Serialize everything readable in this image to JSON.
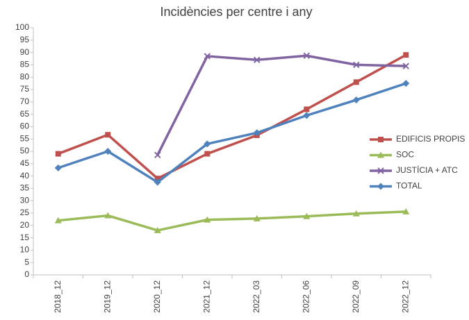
{
  "chart_data": {
    "type": "line",
    "title": "Incidències per centre i any",
    "categories": [
      "2018_12",
      "2019_12",
      "2020_12",
      "2021_12",
      "2022_03",
      "2022_06",
      "2022_09",
      "2022_12"
    ],
    "series": [
      {
        "name": "EDIFICIS PROPIS",
        "color": "#c0504d",
        "marker": "square",
        "values": [
          49,
          56.7,
          39,
          49,
          56.5,
          67,
          78,
          89
        ]
      },
      {
        "name": "SOC",
        "color": "#9bbb59",
        "marker": "triangle",
        "values": [
          22,
          24,
          18,
          22.3,
          22.8,
          23.7,
          24.8,
          25.6
        ]
      },
      {
        "name": "JUSTÍCIA + ATC",
        "color": "#8064a2",
        "marker": "x",
        "values": [
          null,
          null,
          48.5,
          88.5,
          87,
          88.7,
          85,
          84.5
        ]
      },
      {
        "name": "TOTAL",
        "color": "#4f81bd",
        "marker": "diamond",
        "values": [
          43.3,
          50,
          37.5,
          53,
          57.5,
          64.5,
          70.8,
          77.5
        ]
      }
    ],
    "ylim": [
      0,
      100
    ],
    "yticks": [
      0,
      5,
      10,
      15,
      20,
      25,
      30,
      35,
      40,
      45,
      50,
      55,
      60,
      65,
      70,
      75,
      80,
      85,
      90,
      95,
      100
    ],
    "grid": false,
    "legend": "right"
  }
}
